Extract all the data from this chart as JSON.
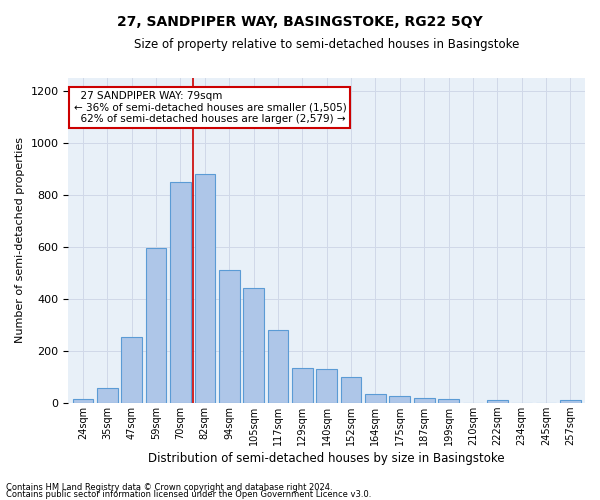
{
  "title": "27, SANDPIPER WAY, BASINGSTOKE, RG22 5QY",
  "subtitle": "Size of property relative to semi-detached houses in Basingstoke",
  "xlabel": "Distribution of semi-detached houses by size in Basingstoke",
  "ylabel": "Number of semi-detached properties",
  "bar_labels": [
    "24sqm",
    "35sqm",
    "47sqm",
    "59sqm",
    "70sqm",
    "82sqm",
    "94sqm",
    "105sqm",
    "117sqm",
    "129sqm",
    "140sqm",
    "152sqm",
    "164sqm",
    "175sqm",
    "187sqm",
    "199sqm",
    "210sqm",
    "222sqm",
    "234sqm",
    "245sqm",
    "257sqm"
  ],
  "bar_values": [
    15,
    55,
    255,
    595,
    850,
    880,
    510,
    440,
    280,
    135,
    130,
    100,
    35,
    25,
    20,
    15,
    0,
    10,
    0,
    0,
    10
  ],
  "bar_color": "#aec6e8",
  "bar_edge_color": "#5b9bd5",
  "property_label": "27 SANDPIPER WAY: 79sqm",
  "pct_smaller": 36,
  "pct_larger": 62,
  "n_smaller": 1505,
  "n_larger": 2579,
  "annotation_box_color": "#ffffff",
  "annotation_box_edge": "#cc0000",
  "vline_color": "#cc0000",
  "vline_x": 4.5,
  "grid_color": "#d0d8e8",
  "background_color": "#e8f0f8",
  "ylim": [
    0,
    1250
  ],
  "yticks": [
    0,
    200,
    400,
    600,
    800,
    1000,
    1200
  ],
  "footnote1": "Contains HM Land Registry data © Crown copyright and database right 2024.",
  "footnote2": "Contains public sector information licensed under the Open Government Licence v3.0."
}
